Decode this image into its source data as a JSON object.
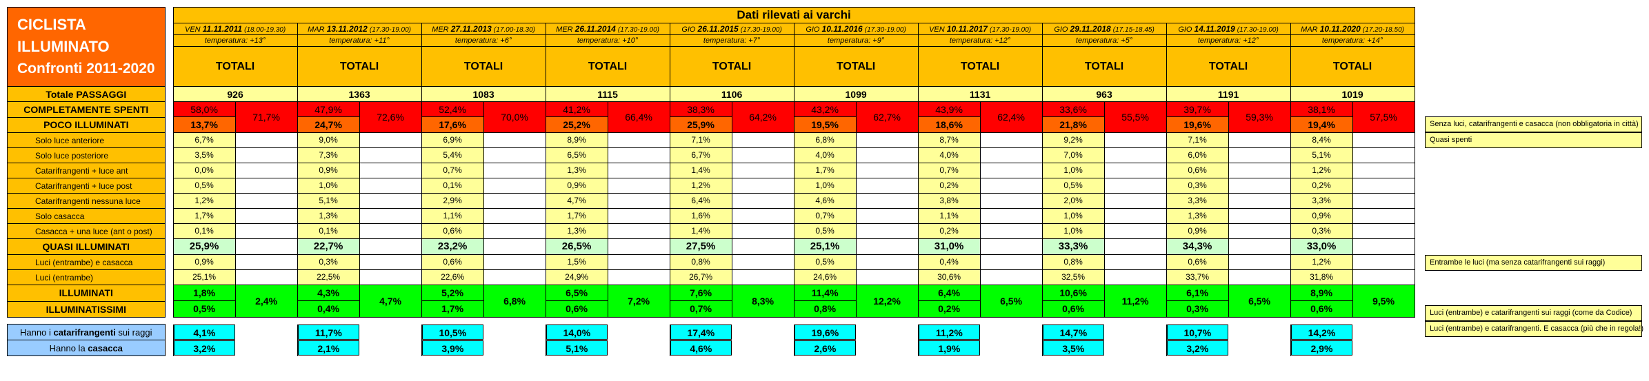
{
  "title": {
    "line1": "CICLISTA",
    "line2": "ILLUMINATO",
    "line3": "Confronti 2011-2020"
  },
  "header": {
    "main": "Dati rilevati ai varchi",
    "totals_label": "TOTALI",
    "columns": [
      {
        "day": "VEN",
        "date": "11.11.2011",
        "time": "(18.00-19.30)",
        "temp": "temperatura: +13°"
      },
      {
        "day": "MAR",
        "date": "13.11.2012",
        "time": "(17.30-19.00)",
        "temp": "temperatura: +11°"
      },
      {
        "day": "MER",
        "date": "27.11.2013",
        "time": "(17.00-18.30)",
        "temp": "temperatura: +6°"
      },
      {
        "day": "MER",
        "date": "26.11.2014",
        "time": "(17.30-19.00)",
        "temp": "temperatura: +10°"
      },
      {
        "day": "GIO",
        "date": "26.11.2015",
        "time": "(17.30-19.00)",
        "temp": "temperatura: +7°"
      },
      {
        "day": "GIO",
        "date": "10.11.2016",
        "time": "(17.30-19.00)",
        "temp": "temperatura: +9°"
      },
      {
        "day": "VEN",
        "date": "10.11.2017",
        "time": "(17.30-19.00)",
        "temp": "temperatura: +12°"
      },
      {
        "day": "GIO",
        "date": "29.11.2018",
        "time": "(17.15-18.45)",
        "temp": "temperatura: +5°"
      },
      {
        "day": "GIO",
        "date": "14.11.2019",
        "time": "(17.30-19.00)",
        "temp": "temperatura: +12°"
      },
      {
        "day": "MAR",
        "date": "10.11.2020",
        "time": "(17.20-18.50)",
        "temp": "temperatura: +14°"
      }
    ]
  },
  "rows": {
    "passaggi": {
      "label": "Totale PASSAGGI",
      "values": [
        "926",
        "1363",
        "1083",
        "1115",
        "1106",
        "1099",
        "1131",
        "963",
        "1191",
        "1019"
      ]
    },
    "spenti": {
      "label": "COMPLETAMENTE SPENTI",
      "values": [
        "58,0%",
        "47,9%",
        "52,4%",
        "41,2%",
        "38,3%",
        "43,2%",
        "43,9%",
        "33,6%",
        "39,7%",
        "38,1%"
      ]
    },
    "poco": {
      "label": "POCO ILLUMINATI",
      "values": [
        "13,7%",
        "24,7%",
        "17,6%",
        "25,2%",
        "25,9%",
        "19,5%",
        "18,6%",
        "21,8%",
        "19,6%",
        "19,4%"
      ]
    },
    "spenti_poco_sum": [
      "71,7%",
      "72,6%",
      "70,0%",
      "66,4%",
      "64,2%",
      "62,7%",
      "62,4%",
      "55,5%",
      "59,3%",
      "57,5%"
    ],
    "sub": [
      {
        "label": "Solo luce anteriore",
        "values": [
          "6,7%",
          "9,0%",
          "6,9%",
          "8,9%",
          "7,1%",
          "6,8%",
          "8,7%",
          "9,2%",
          "7,1%",
          "8,4%"
        ]
      },
      {
        "label": "Solo luce posteriore",
        "values": [
          "3,5%",
          "7,3%",
          "5,4%",
          "6,5%",
          "6,7%",
          "4,0%",
          "4,0%",
          "7,0%",
          "6,0%",
          "5,1%"
        ]
      },
      {
        "label": "Catarifrangenti + luce ant",
        "values": [
          "0,0%",
          "0,9%",
          "0,7%",
          "1,3%",
          "1,4%",
          "1,7%",
          "0,7%",
          "1,0%",
          "0,6%",
          "1,2%"
        ]
      },
      {
        "label": "Catarifrangenti + luce post",
        "values": [
          "0,5%",
          "1,0%",
          "0,1%",
          "0,9%",
          "1,2%",
          "1,0%",
          "0,2%",
          "0,5%",
          "0,3%",
          "0,2%"
        ]
      },
      {
        "label": "Catarifrangenti nessuna luce",
        "values": [
          "1,2%",
          "5,1%",
          "2,9%",
          "4,7%",
          "6,4%",
          "4,6%",
          "3,8%",
          "2,0%",
          "3,3%",
          "3,3%"
        ]
      },
      {
        "label": "Solo casacca",
        "values": [
          "1,7%",
          "1,3%",
          "1,1%",
          "1,7%",
          "1,6%",
          "0,7%",
          "1,1%",
          "1,0%",
          "1,3%",
          "0,9%"
        ]
      },
      {
        "label": "Casacca + una luce (ant o post)",
        "values": [
          "0,1%",
          "0,1%",
          "0,6%",
          "1,3%",
          "1,4%",
          "0,5%",
          "0,2%",
          "1,0%",
          "0,9%",
          "0,3%"
        ]
      }
    ],
    "quasi": {
      "label": "QUASI ILLUMINATI",
      "values": [
        "25,9%",
        "22,7%",
        "23,2%",
        "26,5%",
        "27,5%",
        "25,1%",
        "31,0%",
        "33,3%",
        "34,3%",
        "33,0%"
      ]
    },
    "luci_cas": {
      "label": "Luci (entrambe) e casacca",
      "values": [
        "0,9%",
        "0,3%",
        "0,6%",
        "1,5%",
        "0,8%",
        "0,5%",
        "0,4%",
        "0,8%",
        "0,6%",
        "1,2%"
      ]
    },
    "luci": {
      "label": "Luci (entrambe)",
      "values": [
        "25,1%",
        "22,5%",
        "22,6%",
        "24,9%",
        "26,7%",
        "24,6%",
        "30,6%",
        "32,5%",
        "33,7%",
        "31,8%"
      ]
    },
    "illum": {
      "label": "ILLUMINATI",
      "values": [
        "1,8%",
        "4,3%",
        "5,2%",
        "6,5%",
        "7,6%",
        "11,4%",
        "6,4%",
        "10,6%",
        "6,1%",
        "8,9%"
      ]
    },
    "illumiss": {
      "label": "ILLUMINATISSIMI",
      "values": [
        "0,5%",
        "0,4%",
        "1,7%",
        "0,6%",
        "0,7%",
        "0,8%",
        "0,2%",
        "0,6%",
        "0,3%",
        "0,6%"
      ]
    },
    "illum_sum": [
      "2,4%",
      "4,7%",
      "6,8%",
      "7,2%",
      "8,3%",
      "12,2%",
      "6,5%",
      "11,2%",
      "6,5%",
      "9,5%"
    ],
    "cata": {
      "label_pre": "Hanno i ",
      "label_bold": "catarifrangenti",
      "label_post": " sui raggi",
      "values": [
        "4,1%",
        "11,7%",
        "10,5%",
        "14,0%",
        "17,4%",
        "19,6%",
        "11,2%",
        "14,7%",
        "10,7%",
        "14,2%"
      ]
    },
    "casacca": {
      "label_pre": "Hanno la ",
      "label_bold": "casacca",
      "values": [
        "3,2%",
        "2,1%",
        "3,9%",
        "5,1%",
        "4,6%",
        "2,6%",
        "1,9%",
        "3,5%",
        "3,2%",
        "2,9%"
      ]
    }
  },
  "notes": {
    "spenti": "Senza luci, catarifrangenti e casacca (non obbligatoria in città)",
    "poco": "Quasi spenti",
    "quasi": "Entrambe le luci (ma senza catarifrangenti sui raggi)",
    "illum": "Luci (entrambe) e catarifrangenti sui raggi (come da Codice)",
    "illumiss": "Luci (entrambe) e catarifrangenti. E casacca (più che in regola!)"
  },
  "colors": {
    "title_bg": "#ff6600",
    "header_bg": "#ffc000",
    "value_bg": "#ffff99",
    "red": "#ff0000",
    "green": "#00ff00",
    "cyan": "#00ffff",
    "blue_label": "#99ccff"
  }
}
